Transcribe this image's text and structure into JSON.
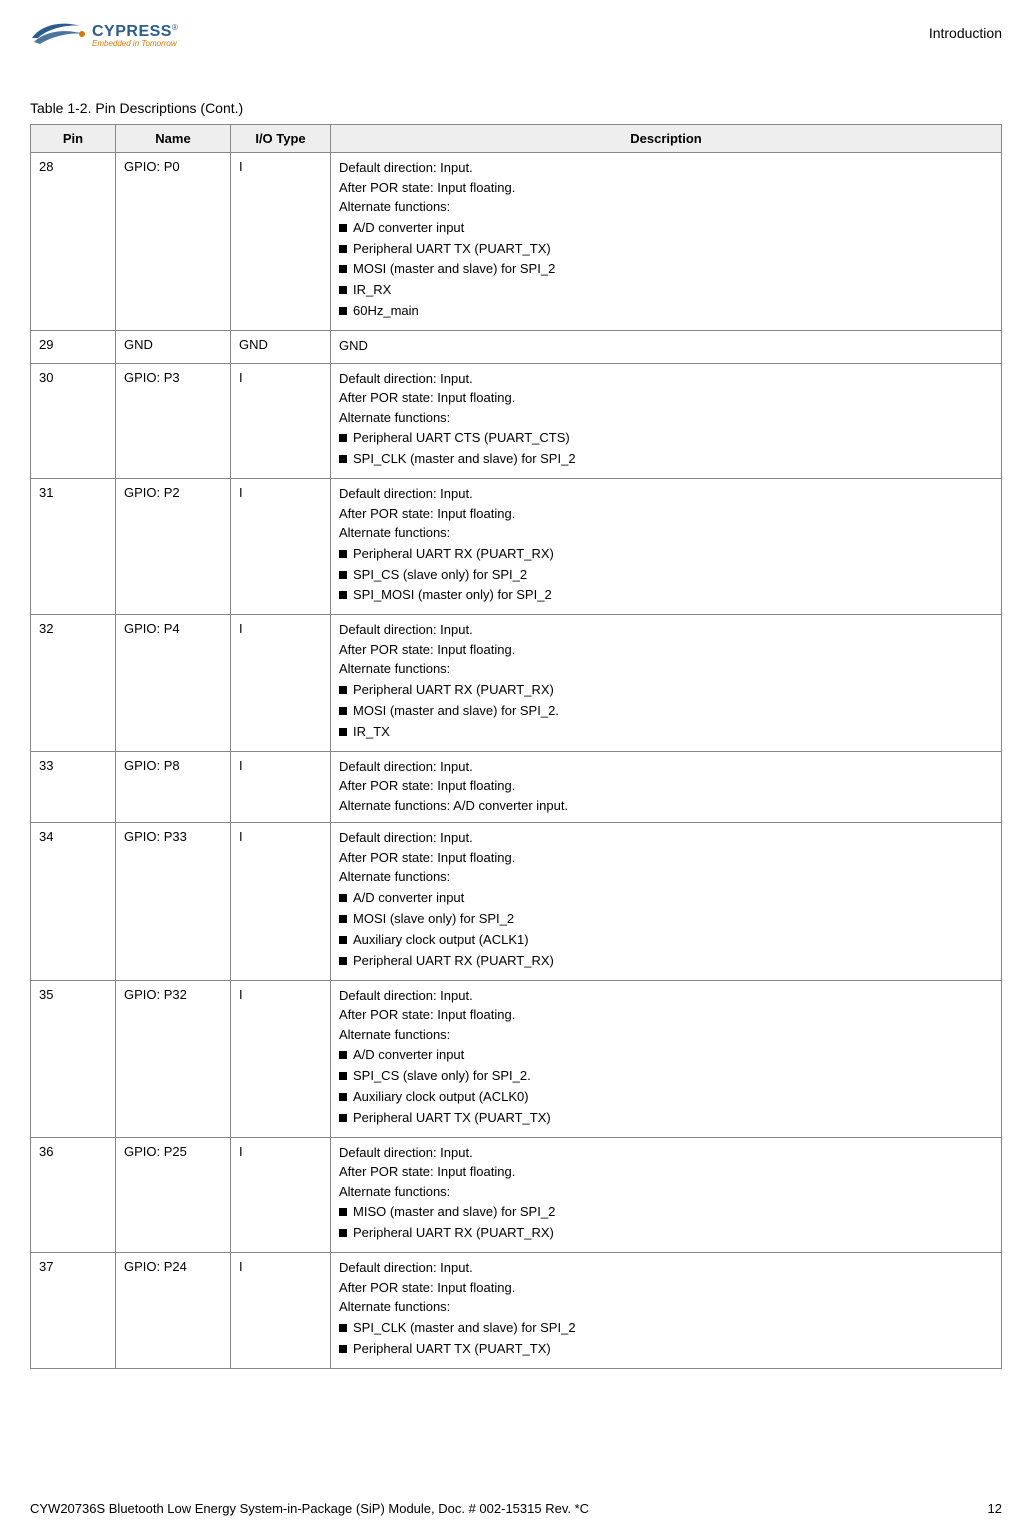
{
  "header": {
    "brand_name": "CYPRESS",
    "brand_tagline": "Embedded in Tomorrow",
    "section_label": "Introduction"
  },
  "table": {
    "caption": "Table 1-2.  Pin Descriptions (Cont.)",
    "columns": {
      "pin": "Pin",
      "name": "Name",
      "io": "I/O Type",
      "desc": "Description"
    },
    "rows": [
      {
        "pin": "28",
        "name": "GPIO: P0",
        "io": "I",
        "pre": [
          "Default direction: Input.",
          "After POR state: Input floating.",
          "Alternate functions:"
        ],
        "bullets": [
          "A/D converter input",
          "Peripheral UART TX (PUART_TX)",
          "MOSI (master and slave) for SPI_2",
          "IR_RX",
          "60Hz_main"
        ]
      },
      {
        "pin": "29",
        "name": "GND",
        "io": "GND",
        "pre": [
          "GND"
        ],
        "bullets": []
      },
      {
        "pin": "30",
        "name": "GPIO: P3",
        "io": "I",
        "pre": [
          "Default direction: Input.",
          "After POR state: Input floating.",
          "Alternate functions:"
        ],
        "bullets": [
          "Peripheral UART CTS (PUART_CTS)",
          "SPI_CLK (master and slave) for SPI_2"
        ]
      },
      {
        "pin": "31",
        "name": "GPIO: P2",
        "io": "I",
        "pre": [
          "Default direction: Input.",
          "After POR state: Input floating.",
          "Alternate functions:"
        ],
        "bullets": [
          "Peripheral UART RX (PUART_RX)",
          "SPI_CS (slave only) for SPI_2",
          "SPI_MOSI (master only) for SPI_2"
        ]
      },
      {
        "pin": "32",
        "name": "GPIO: P4",
        "io": "I",
        "pre": [
          "Default direction: Input.",
          "After POR state: Input floating.",
          "Alternate functions:"
        ],
        "bullets": [
          "Peripheral UART RX (PUART_RX)",
          "MOSI (master and slave) for SPI_2.",
          "IR_TX"
        ]
      },
      {
        "pin": "33",
        "name": "GPIO: P8",
        "io": "I",
        "pre": [
          "Default direction: Input.",
          "After POR state: Input floating.",
          "Alternate functions: A/D converter input."
        ],
        "bullets": []
      },
      {
        "pin": "34",
        "name": "GPIO: P33",
        "io": "I",
        "pre": [
          "Default direction: Input.",
          "After POR state: Input floating.",
          "Alternate functions:"
        ],
        "bullets": [
          "A/D converter input",
          "MOSI (slave only) for SPI_2",
          "Auxiliary clock output (ACLK1)",
          "Peripheral UART RX (PUART_RX)"
        ]
      },
      {
        "pin": "35",
        "name": "GPIO: P32",
        "io": "I",
        "pre": [
          "Default direction: Input.",
          "After POR state: Input floating.",
          "Alternate functions:"
        ],
        "bullets": [
          "A/D converter input",
          "SPI_CS (slave only) for SPI_2.",
          "Auxiliary clock output (ACLK0)",
          "Peripheral UART TX (PUART_TX)"
        ]
      },
      {
        "pin": "36",
        "name": "GPIO: P25",
        "io": "I",
        "pre": [
          "Default direction: Input.",
          "After POR state: Input floating.",
          "Alternate functions:"
        ],
        "bullets": [
          "MISO (master and slave) for SPI_2",
          "Peripheral UART RX (PUART_RX)"
        ]
      },
      {
        "pin": "37",
        "name": "GPIO: P24",
        "io": "I",
        "pre": [
          "Default direction: Input.",
          "After POR state: Input floating.",
          "Alternate functions:"
        ],
        "bullets": [
          "SPI_CLK (master and slave) for SPI_2",
          "Peripheral UART TX (PUART_TX)"
        ]
      }
    ]
  },
  "footer": {
    "doc_title": "CYW20736S Bluetooth Low Energy System-in-Package (SiP) Module, Doc. # 002-15315 Rev. *C",
    "page_num": "12"
  },
  "style": {
    "header_bg": "#eeeeee",
    "border_color": "#888888",
    "brand_blue": "#2b5c8a",
    "brand_orange": "#d87800",
    "widths": {
      "pin": 85,
      "name": 115,
      "io": 100
    }
  }
}
